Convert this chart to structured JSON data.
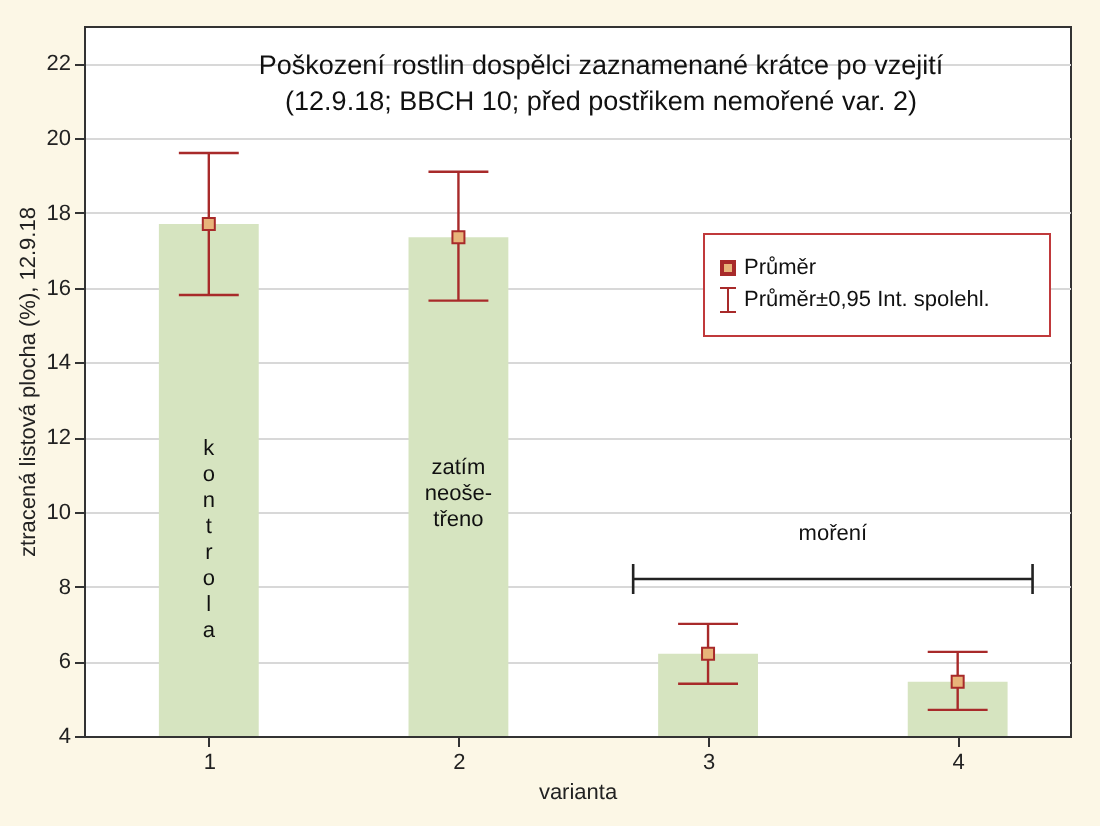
{
  "chart_data": {
    "type": "bar",
    "title": "Poškození rostlin dospělci zaznamenané krátce po vzejití",
    "subtitle": "(12.9.18; BBCH 10; před postřikem nemořené var. 2)",
    "xlabel": "varianta",
    "ylabel": "ztracená listová plocha (%), 12.9.18",
    "categories": [
      "1",
      "2",
      "3",
      "4"
    ],
    "series": [
      {
        "color": "#d6e4c0",
        "values": [
          17.7,
          17.35,
          6.2,
          5.45
        ]
      },
      {
        "type": "scatter",
        "name": "Průměr",
        "color": "#a82a2a",
        "marker": "square",
        "values": [
          17.7,
          17.35,
          6.2,
          5.45
        ],
        "errors": [
          [
            15.8,
            19.6
          ],
          [
            15.65,
            19.1
          ],
          [
            5.4,
            7.0
          ],
          [
            4.7,
            6.25
          ]
        ]
      }
    ],
    "annotations": [
      "kontrola",
      "zatím neoše-třeno",
      "moření",
      "Průměr±0,95 Int. spolehl."
    ],
    "ylim": [
      4,
      23
    ],
    "yticks": [
      4,
      6,
      8,
      10,
      12,
      14,
      16,
      18,
      20,
      22
    ],
    "grid": "y",
    "legend": "right"
  }
}
